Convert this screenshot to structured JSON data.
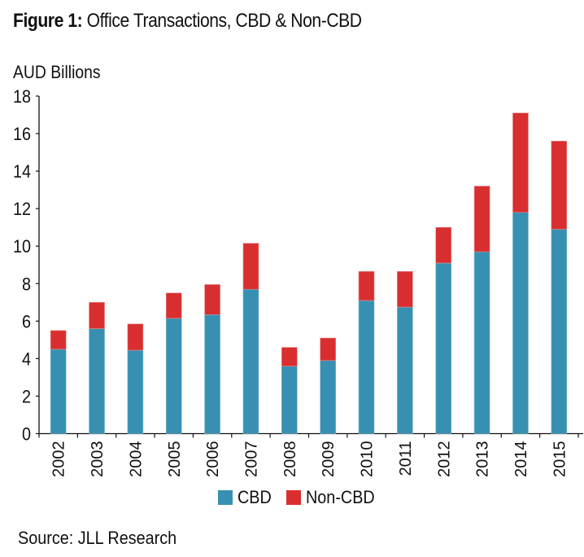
{
  "figure": {
    "title_bold": "Figure 1:",
    "title_rest": " Office Transactions, CBD & Non-CBD",
    "source": "Source: JLL Research"
  },
  "chart_data": {
    "type": "bar",
    "stacked": true,
    "title": "Figure 1: Office Transactions, CBD & Non-CBD",
    "xlabel": "",
    "ylabel": "AUD Billions",
    "ylim": [
      0,
      18
    ],
    "yticks": [
      0,
      2,
      4,
      6,
      8,
      10,
      12,
      14,
      16,
      18
    ],
    "grid": false,
    "legend_position": "bottom-center",
    "categories": [
      "2002",
      "2003",
      "2004",
      "2005",
      "2006",
      "2007",
      "2008",
      "2009",
      "2010",
      "2011",
      "2012",
      "2013",
      "2014",
      "2015"
    ],
    "series": [
      {
        "name": "CBD",
        "color": "#3790B1",
        "values": [
          4.5,
          5.6,
          4.45,
          6.15,
          6.35,
          7.7,
          3.6,
          3.9,
          7.1,
          6.75,
          9.1,
          9.7,
          11.8,
          10.9
        ]
      },
      {
        "name": "Non-CBD",
        "color": "#D92E2F",
        "values": [
          1.0,
          1.4,
          1.4,
          1.35,
          1.6,
          2.45,
          1.0,
          1.2,
          1.55,
          1.9,
          1.9,
          3.5,
          5.3,
          4.7
        ]
      }
    ],
    "totals": [
      5.5,
      7.0,
      5.85,
      7.5,
      7.95,
      10.15,
      4.6,
      5.1,
      8.65,
      8.65,
      11.0,
      13.2,
      17.1,
      15.6
    ],
    "source": "Source: JLL Research"
  }
}
